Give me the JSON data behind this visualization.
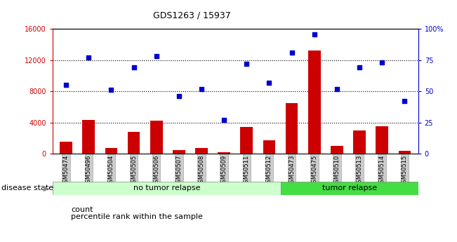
{
  "title": "GDS1263 / 15937",
  "samples": [
    "GSM50474",
    "GSM50496",
    "GSM50504",
    "GSM50505",
    "GSM50506",
    "GSM50507",
    "GSM50508",
    "GSM50509",
    "GSM50511",
    "GSM50512",
    "GSM50473",
    "GSM50475",
    "GSM50510",
    "GSM50513",
    "GSM50514",
    "GSM50515"
  ],
  "counts": [
    1500,
    4300,
    700,
    2800,
    4200,
    500,
    700,
    200,
    3400,
    1700,
    6500,
    13200,
    1000,
    3000,
    3500,
    400
  ],
  "percentiles": [
    55,
    77,
    51,
    69,
    78,
    46,
    52,
    27,
    72,
    57,
    81,
    96,
    52,
    69,
    73,
    42
  ],
  "no_tumor_count": 10,
  "tumor_count": 6,
  "ylim_left": [
    0,
    16000
  ],
  "ylim_right": [
    0,
    100
  ],
  "yticks_left": [
    0,
    4000,
    8000,
    12000,
    16000
  ],
  "yticks_right": [
    0,
    25,
    50,
    75,
    100
  ],
  "bar_color": "#cc0000",
  "dot_color": "#0000cc",
  "no_tumor_color_light": "#ccffcc",
  "tumor_color": "#44dd44",
  "label_bg_color": "#cccccc",
  "grid_color": "#000000",
  "title_fontsize": 9,
  "tick_fontsize": 7,
  "label_fontsize": 8,
  "right_tick_labels": [
    "0",
    "25",
    "50",
    "75",
    "100%"
  ]
}
